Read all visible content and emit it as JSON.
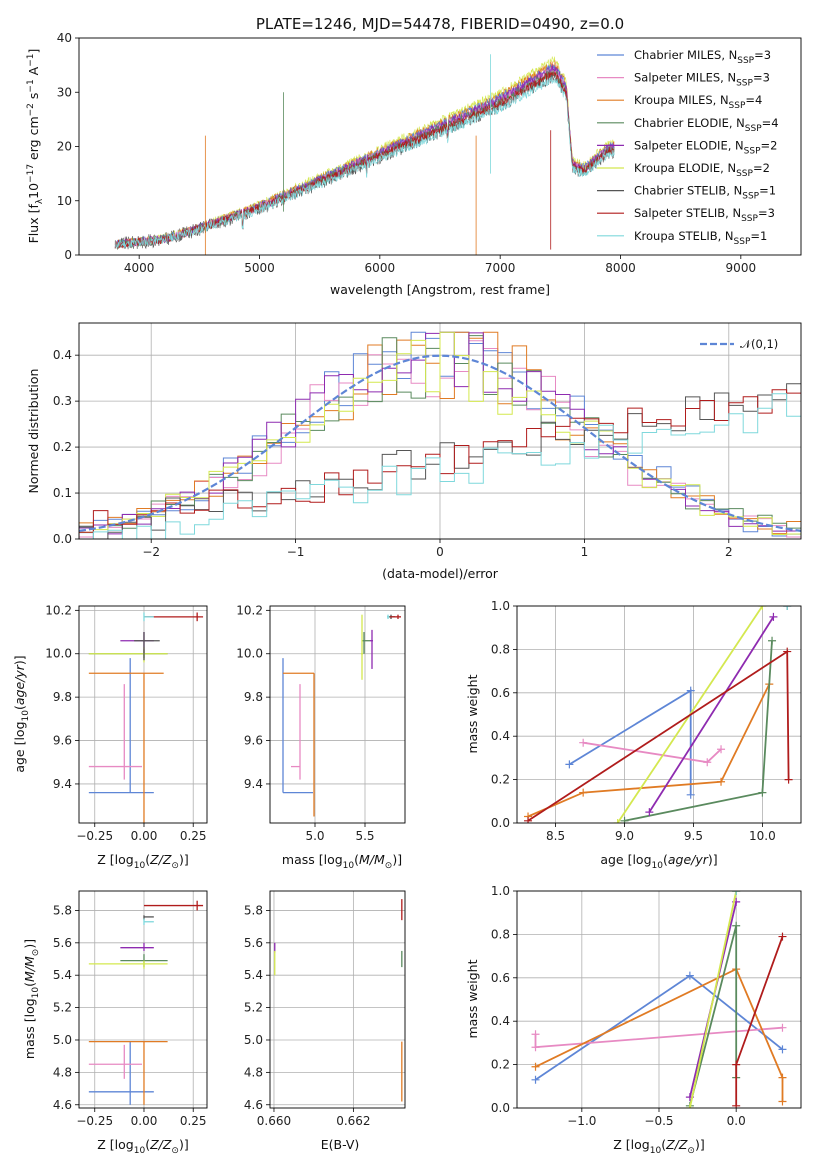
{
  "chart_data": [
    {
      "type": "line",
      "title": "PLATE=1246, MJD=54478, FIBERID=0490, z=0.0",
      "xlabel": "wavelength [Angstrom, rest frame]",
      "ylabel": "Flux [f_λ 10^-17 erg cm^-2 s^-1 A^-1]",
      "xlim": [
        3500,
        9500
      ],
      "ylim": [
        0,
        40
      ],
      "xticks": [
        4000,
        5000,
        6000,
        7000,
        8000,
        9000
      ],
      "yticks": [
        0,
        10,
        20,
        30,
        40
      ],
      "legend_position": "top-right",
      "legend": [
        {
          "base": "Chabrier MILES, N",
          "sub": "SSP",
          "tail": "=3",
          "color": "#5e86d6"
        },
        {
          "base": "Salpeter MILES, N",
          "sub": "SSP",
          "tail": "=3",
          "color": "#e78ac3"
        },
        {
          "base": "Kroupa MILES, N",
          "sub": "SSP",
          "tail": "=4",
          "color": "#e07b24"
        },
        {
          "base": "Chabrier ELODIE, N",
          "sub": "SSP",
          "tail": "=4",
          "color": "#5a8a5e"
        },
        {
          "base": "Salpeter ELODIE, N",
          "sub": "SSP",
          "tail": "=2",
          "color": "#8e2bb0"
        },
        {
          "base": "Kroupa ELODIE, N",
          "sub": "SSP",
          "tail": "=2",
          "color": "#d4e84f"
        },
        {
          "base": "Chabrier STELIB, N",
          "sub": "SSP",
          "tail": "=1",
          "color": "#555555"
        },
        {
          "base": "Salpeter STELIB, N",
          "sub": "SSP",
          "tail": "=3",
          "color": "#b01c1c"
        },
        {
          "base": "Kroupa STELIB, N",
          "sub": "SSP",
          "tail": "=1",
          "color": "#7fd8dc"
        }
      ],
      "spectrum_shape": {
        "x": [
          3800,
          4000,
          4200,
          4500,
          5000,
          5500,
          6000,
          6500,
          7000,
          7300,
          7450,
          7550,
          7600,
          7700,
          7900,
          7950
        ],
        "y": [
          2,
          2.5,
          3,
          5,
          9,
          14,
          19,
          24,
          29,
          33,
          35,
          31,
          17,
          16,
          20,
          20
        ]
      }
    },
    {
      "type": "step-histogram",
      "xlabel": "(data-model)/error",
      "ylabel": "Normed distribution",
      "xlim": [
        -2.5,
        2.5
      ],
      "ylim": [
        0,
        0.47
      ],
      "xticks": [
        -2,
        -1,
        0,
        1,
        2
      ],
      "yticks": [
        0.0,
        0.1,
        0.2,
        0.3,
        0.4
      ],
      "grid": true,
      "legend_position": "top-right",
      "legend": [
        "𝒩(0,1)"
      ],
      "reference_curve": {
        "name": "𝒩(0,1)",
        "mean": 0,
        "sigma": 1,
        "color": "#5e86d6"
      },
      "bins": [
        -2.5,
        2.5,
        50
      ],
      "series_shapes": [
        {
          "kind": "normal",
          "color": "#5e86d6",
          "seed": 1
        },
        {
          "kind": "normal",
          "color": "#e78ac3",
          "seed": 2
        },
        {
          "kind": "normal",
          "color": "#e07b24",
          "seed": 3
        },
        {
          "kind": "normal",
          "color": "#5a8a5e",
          "seed": 4
        },
        {
          "kind": "normal",
          "color": "#8e2bb0",
          "seed": 5
        },
        {
          "kind": "normal",
          "color": "#d4e84f",
          "seed": 6
        },
        {
          "kind": "rising",
          "color": "#555555",
          "seed": 7
        },
        {
          "kind": "rising",
          "color": "#b01c1c",
          "seed": 8
        },
        {
          "kind": "rising",
          "color": "#7fd8dc",
          "seed": 9
        }
      ]
    },
    {
      "type": "errorbar",
      "xlabel": "Z [log10(Z/Z☉)]",
      "ylabel": "age  [log10(age/yr)]",
      "xlim": [
        -0.33,
        0.32
      ],
      "ylim": [
        9.22,
        10.22
      ],
      "xticks": [
        -0.25,
        0.0,
        0.25
      ],
      "yticks": [
        9.4,
        9.6,
        9.8,
        10.0,
        10.2
      ],
      "points": [
        {
          "x": -0.07,
          "y": 9.36,
          "xlo": -0.28,
          "xhi": 0.05,
          "ylo": 9.36,
          "yhi": 9.98,
          "color": "#5e86d6"
        },
        {
          "x": -0.1,
          "y": 9.48,
          "xlo": -0.28,
          "xhi": -0.01,
          "ylo": 9.42,
          "yhi": 9.86,
          "color": "#e78ac3"
        },
        {
          "x": 0.0,
          "y": 9.91,
          "xlo": -0.28,
          "xhi": 0.1,
          "ylo": 9.22,
          "yhi": 9.91,
          "color": "#e07b24"
        },
        {
          "x": 0.0,
          "y": 10.0,
          "xlo": -0.28,
          "xhi": 0.12,
          "ylo": 9.98,
          "yhi": 10.02,
          "color": "#5a8a5e"
        },
        {
          "x": 0.0,
          "y": 10.06,
          "xlo": -0.12,
          "xhi": 0.05,
          "ylo": 10.0,
          "yhi": 10.1,
          "color": "#8e2bb0"
        },
        {
          "x": 0.0,
          "y": 10.0,
          "xlo": -0.28,
          "xhi": 0.12,
          "ylo": 9.96,
          "yhi": 10.03,
          "color": "#d4e84f"
        },
        {
          "x": 0.0,
          "y": 10.06,
          "xlo": -0.05,
          "xhi": 0.08,
          "ylo": 9.97,
          "yhi": 10.1,
          "color": "#555555"
        },
        {
          "x": 0.27,
          "y": 10.17,
          "xlo": 0.0,
          "xhi": 0.3,
          "ylo": 10.15,
          "yhi": 10.19,
          "color": "#b01c1c"
        },
        {
          "x": 0.0,
          "y": 10.17,
          "xlo": 0.0,
          "xhi": 0.05,
          "ylo": 10.15,
          "yhi": 10.19,
          "color": "#7fd8dc"
        }
      ]
    },
    {
      "type": "errorbar",
      "xlabel": "mass [log10(M/M☉)]",
      "ylabel": "",
      "xlim": [
        4.55,
        5.9
      ],
      "ylim": [
        9.22,
        10.22
      ],
      "xticks": [
        5.0,
        5.5
      ],
      "yticks": [
        9.4,
        9.6,
        9.8,
        10.0,
        10.2
      ],
      "points": [
        {
          "x": 4.68,
          "y": 9.36,
          "xlo": 4.68,
          "xhi": 4.98,
          "ylo": 9.36,
          "yhi": 9.98,
          "color": "#5e86d6"
        },
        {
          "x": 4.85,
          "y": 9.48,
          "xlo": 4.76,
          "xhi": 4.85,
          "ylo": 9.42,
          "yhi": 9.86,
          "color": "#e78ac3"
        },
        {
          "x": 4.99,
          "y": 9.91,
          "xlo": 4.68,
          "xhi": 4.99,
          "ylo": 9.25,
          "yhi": 9.91,
          "color": "#e07b24"
        },
        {
          "x": 5.49,
          "y": 10.06,
          "xlo": 5.47,
          "xhi": 5.55,
          "ylo": 10.0,
          "yhi": 10.1,
          "color": "#5a8a5e"
        },
        {
          "x": 5.57,
          "y": 10.06,
          "xlo": 5.55,
          "xhi": 5.58,
          "ylo": 9.93,
          "yhi": 10.11,
          "color": "#8e2bb0"
        },
        {
          "x": 5.47,
          "y": 10.0,
          "xlo": 5.46,
          "xhi": 5.48,
          "ylo": 9.88,
          "yhi": 10.18,
          "color": "#d4e84f"
        },
        {
          "x": 5.76,
          "y": 10.17,
          "xlo": 5.74,
          "xhi": 5.8,
          "ylo": 10.16,
          "yhi": 10.18,
          "color": "#555555"
        },
        {
          "x": 5.83,
          "y": 10.17,
          "xlo": 5.75,
          "xhi": 5.86,
          "ylo": 10.16,
          "yhi": 10.18,
          "color": "#b01c1c"
        },
        {
          "x": 5.73,
          "y": 10.17,
          "xlo": 5.72,
          "xhi": 5.74,
          "ylo": 10.16,
          "yhi": 10.18,
          "color": "#7fd8dc"
        }
      ]
    },
    {
      "type": "line",
      "xlabel": "age  [log10(age/yr)]",
      "ylabel": "mass weight",
      "xlim": [
        8.22,
        10.28
      ],
      "ylim": [
        0,
        1.0
      ],
      "xticks": [
        8.5,
        9.0,
        9.5,
        10.0
      ],
      "yticks": [
        0.0,
        0.2,
        0.4,
        0.6,
        0.8,
        1.0
      ],
      "grid": true,
      "series": [
        {
          "color": "#5e86d6",
          "x": [
            8.6,
            9.48,
            9.48
          ],
          "y": [
            0.27,
            0.61,
            0.13
          ]
        },
        {
          "color": "#e78ac3",
          "x": [
            8.7,
            9.6,
            9.7
          ],
          "y": [
            0.37,
            0.28,
            0.34
          ]
        },
        {
          "color": "#e07b24",
          "x": [
            8.3,
            8.7,
            9.7,
            10.05
          ],
          "y": [
            0.03,
            0.14,
            0.19,
            0.64
          ]
        },
        {
          "color": "#5a8a5e",
          "x": [
            9.0,
            10.0,
            10.07
          ],
          "y": [
            0.01,
            0.14,
            0.84
          ]
        },
        {
          "color": "#8e2bb0",
          "x": [
            9.18,
            10.08
          ],
          "y": [
            0.05,
            0.95
          ]
        },
        {
          "color": "#d4e84f",
          "x": [
            8.95,
            10.0
          ],
          "y": [
            0.0,
            1.0
          ]
        },
        {
          "color": "#555555",
          "x": [
            10.18
          ],
          "y": [
            1.0
          ]
        },
        {
          "color": "#b01c1c",
          "x": [
            8.3,
            10.18,
            10.19
          ],
          "y": [
            0.01,
            0.79,
            0.2
          ]
        },
        {
          "color": "#7fd8dc",
          "x": [
            10.18
          ],
          "y": [
            1.0
          ]
        }
      ]
    },
    {
      "type": "errorbar",
      "xlabel": "Z [log10(Z/Z☉)]",
      "ylabel": "mass [log10(M/M☉)]",
      "xlim": [
        -0.33,
        0.32
      ],
      "ylim": [
        4.58,
        5.92
      ],
      "xticks": [
        -0.25,
        0.0,
        0.25
      ],
      "yticks": [
        4.6,
        4.8,
        5.0,
        5.2,
        5.4,
        5.6,
        5.8
      ],
      "points": [
        {
          "x": -0.07,
          "y": 4.68,
          "xlo": -0.28,
          "xhi": 0.05,
          "ylo": 4.6,
          "yhi": 4.99,
          "color": "#5e86d6"
        },
        {
          "x": -0.1,
          "y": 4.85,
          "xlo": -0.28,
          "xhi": -0.01,
          "ylo": 4.76,
          "yhi": 4.97,
          "color": "#e78ac3"
        },
        {
          "x": 0.0,
          "y": 4.99,
          "xlo": -0.28,
          "xhi": 0.12,
          "ylo": 4.6,
          "yhi": 4.99,
          "color": "#e07b24"
        },
        {
          "x": 0.0,
          "y": 5.49,
          "xlo": -0.12,
          "xhi": 0.12,
          "ylo": 5.45,
          "yhi": 5.53,
          "color": "#5a8a5e"
        },
        {
          "x": 0.0,
          "y": 5.57,
          "xlo": -0.12,
          "xhi": 0.05,
          "ylo": 5.55,
          "yhi": 5.6,
          "color": "#8e2bb0"
        },
        {
          "x": 0.0,
          "y": 5.47,
          "xlo": -0.28,
          "xhi": 0.12,
          "ylo": 5.44,
          "yhi": 5.49,
          "color": "#d4e84f"
        },
        {
          "x": 0.0,
          "y": 5.76,
          "xlo": 0.0,
          "xhi": 0.05,
          "ylo": 5.74,
          "yhi": 5.77,
          "color": "#555555"
        },
        {
          "x": 0.27,
          "y": 5.83,
          "xlo": 0.0,
          "xhi": 0.3,
          "ylo": 5.8,
          "yhi": 5.86,
          "color": "#b01c1c"
        },
        {
          "x": 0.0,
          "y": 5.73,
          "xlo": 0.0,
          "xhi": 0.05,
          "ylo": 5.71,
          "yhi": 5.75,
          "color": "#7fd8dc"
        }
      ]
    },
    {
      "type": "errorbar",
      "xlabel": "E(B-V)",
      "ylabel": "",
      "xlim": [
        0.6599,
        0.6633
      ],
      "ylim": [
        4.58,
        5.92
      ],
      "xticks": [
        0.66,
        0.662
      ],
      "yticks": [
        4.6,
        4.8,
        5.0,
        5.2,
        5.4,
        5.6,
        5.8
      ],
      "tick_labels_x": [
        "0.660",
        "0.662"
      ],
      "points": [
        {
          "x": 0.66322,
          "y": 4.8,
          "xlo": 0.66322,
          "xhi": 0.66322,
          "ylo": 4.62,
          "yhi": 4.99,
          "color": "#e07b24"
        },
        {
          "x": 0.66322,
          "y": 5.5,
          "xlo": 0.66322,
          "xhi": 0.66322,
          "ylo": 5.45,
          "yhi": 5.55,
          "color": "#5a8a5e"
        },
        {
          "x": 0.66002,
          "y": 5.57,
          "xlo": 0.66002,
          "xhi": 0.66002,
          "ylo": 5.54,
          "yhi": 5.6,
          "color": "#8e2bb0"
        },
        {
          "x": 0.66002,
          "y": 5.47,
          "xlo": 0.66002,
          "xhi": 0.66002,
          "ylo": 5.4,
          "yhi": 5.55,
          "color": "#d4e84f"
        },
        {
          "x": 0.66322,
          "y": 5.83,
          "xlo": 0.66322,
          "xhi": 0.66322,
          "ylo": 5.74,
          "yhi": 5.87,
          "color": "#b01c1c"
        }
      ]
    },
    {
      "type": "line",
      "xlabel": "Z [log10(Z/Z☉)]",
      "ylabel": "mass weight",
      "xlim": [
        -1.42,
        0.42
      ],
      "ylim": [
        0,
        1.0
      ],
      "xticks": [
        -1.0,
        -0.5,
        0.0
      ],
      "yticks": [
        0.0,
        0.2,
        0.4,
        0.6,
        0.8,
        1.0
      ],
      "grid": true,
      "series": [
        {
          "color": "#5e86d6",
          "x": [
            -1.3,
            -0.3,
            0.3
          ],
          "y": [
            0.13,
            0.61,
            0.27
          ]
        },
        {
          "color": "#e78ac3",
          "x": [
            -1.3,
            -1.3,
            0.3
          ],
          "y": [
            0.34,
            0.28,
            0.37
          ]
        },
        {
          "color": "#e07b24",
          "x": [
            -1.3,
            0.0,
            0.3,
            0.3
          ],
          "y": [
            0.19,
            0.64,
            0.14,
            0.03
          ]
        },
        {
          "color": "#5a8a5e",
          "x": [
            -0.3,
            0.0,
            0.0
          ],
          "y": [
            0.01,
            0.84,
            0.14
          ]
        },
        {
          "color": "#8e2bb0",
          "x": [
            -0.3,
            0.0
          ],
          "y": [
            0.05,
            0.95
          ]
        },
        {
          "color": "#d4e84f",
          "x": [
            -0.3,
            0.0
          ],
          "y": [
            0.0,
            1.0
          ]
        },
        {
          "color": "#555555",
          "x": [
            0.0
          ],
          "y": [
            1.0
          ]
        },
        {
          "color": "#b01c1c",
          "x": [
            0.0,
            0.0,
            0.3
          ],
          "y": [
            0.01,
            0.2,
            0.79
          ]
        },
        {
          "color": "#7fd8dc",
          "x": [
            0.0
          ],
          "y": [
            1.0
          ]
        }
      ]
    }
  ]
}
